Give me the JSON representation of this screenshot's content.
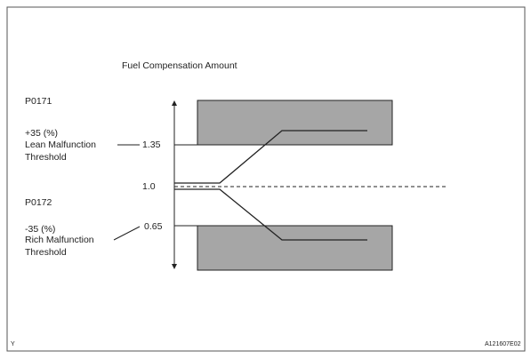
{
  "title": "Fuel Compensation Amount",
  "lean": {
    "code": "P0171",
    "percent": "+35 (%)",
    "label_lines": [
      "Lean Malfunction",
      "Threshold"
    ],
    "threshold": "1.35"
  },
  "center": {
    "value": "1.0"
  },
  "rich": {
    "code": "P0172",
    "percent": "-35 (%)",
    "label_lines": [
      "Rich Malfunction",
      "Threshold"
    ],
    "threshold": "0.65"
  },
  "footer": {
    "left": "Y",
    "right": "A121607E02"
  }
}
